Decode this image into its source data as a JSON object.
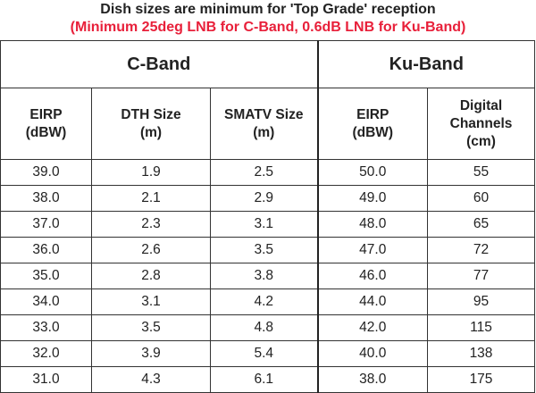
{
  "title": "Dish sizes are minimum for 'Top Grade' reception",
  "subtitle": "(Minimum 25deg LNB for C-Band, 0.6dB LNB for Ku-Band)",
  "groups": [
    "C-Band",
    "Ku-Band"
  ],
  "columns": [
    [
      "EIRP",
      "(dBW)"
    ],
    [
      "DTH Size",
      "(m)"
    ],
    [
      "SMATV Size",
      "(m)"
    ],
    [
      "EIRP",
      "(dBW)"
    ],
    [
      "Digital",
      "Channels",
      "(cm)"
    ]
  ],
  "rows": [
    [
      "39.0",
      "1.9",
      "2.5",
      "50.0",
      "55"
    ],
    [
      "38.0",
      "2.1",
      "2.9",
      "49.0",
      "60"
    ],
    [
      "37.0",
      "2.3",
      "3.1",
      "48.0",
      "65"
    ],
    [
      "36.0",
      "2.6",
      "3.5",
      "47.0",
      "72"
    ],
    [
      "35.0",
      "2.8",
      "3.8",
      "46.0",
      "77"
    ],
    [
      "34.0",
      "3.1",
      "4.2",
      "44.0",
      "95"
    ],
    [
      "33.0",
      "3.5",
      "4.8",
      "42.0",
      "115"
    ],
    [
      "32.0",
      "3.9",
      "5.4",
      "40.0",
      "138"
    ],
    [
      "31.0",
      "4.3",
      "6.1",
      "38.0",
      "175"
    ]
  ],
  "colors": {
    "subtitle": "#e8203a",
    "text": "#222222",
    "border": "#333333"
  }
}
